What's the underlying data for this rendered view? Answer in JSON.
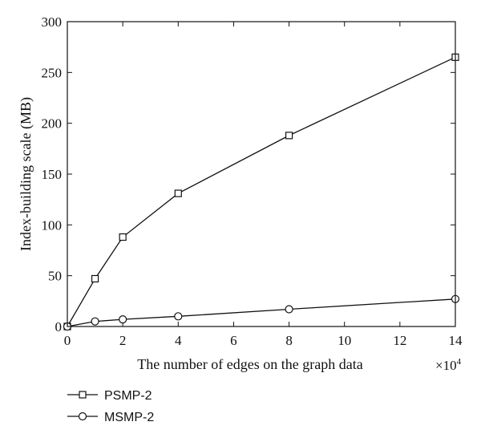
{
  "chart_data": {
    "type": "line",
    "xlabel": "The number of edges on the graph data",
    "ylabel": "Index-building scale (MB)",
    "x_multiplier": "×10",
    "x_multiplier_exponent": "4",
    "xlim": [
      0,
      14
    ],
    "ylim": [
      0,
      300
    ],
    "xticks": [
      0,
      2,
      4,
      6,
      8,
      10,
      12,
      14
    ],
    "yticks": [
      0,
      50,
      100,
      150,
      200,
      250,
      300
    ],
    "grid": false,
    "legend_position": "bottom-left",
    "series": [
      {
        "name": "PSMP-2",
        "marker": "square",
        "x": [
          0,
          1,
          2,
          4,
          8,
          14
        ],
        "y": [
          0,
          47,
          88,
          131,
          188,
          265
        ]
      },
      {
        "name": "MSMP-2",
        "marker": "circle",
        "x": [
          0,
          1,
          2,
          4,
          8,
          14
        ],
        "y": [
          0,
          5,
          7,
          10,
          17,
          27
        ]
      }
    ]
  }
}
